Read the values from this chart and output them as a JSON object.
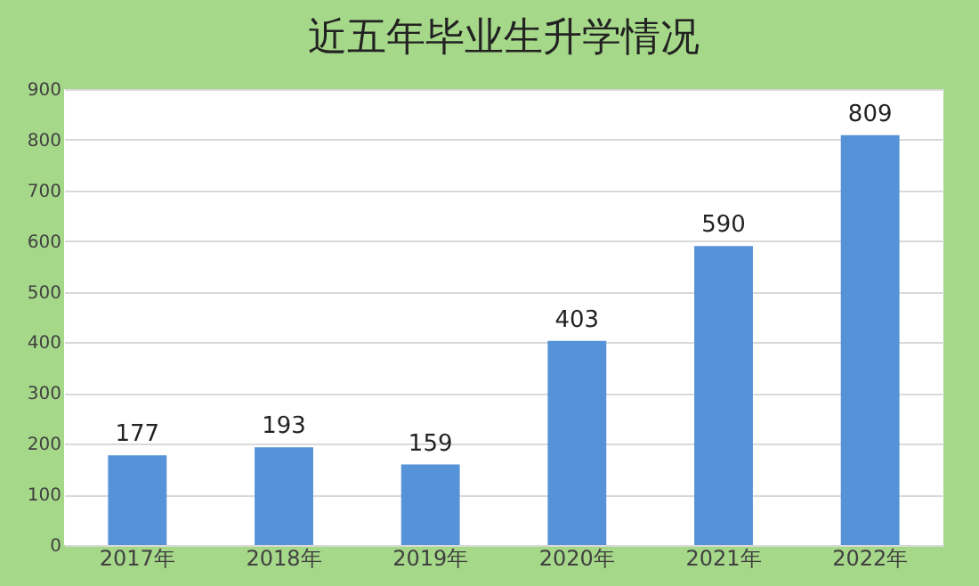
{
  "chart_data": {
    "type": "bar",
    "title": "近五年毕业生升学情况",
    "categories": [
      "2017年",
      "2018年",
      "2019年",
      "2020年",
      "2021年",
      "2022年"
    ],
    "values": [
      177,
      193,
      159,
      403,
      590,
      809
    ],
    "color": "#5592d8",
    "ylim": [
      0,
      900
    ],
    "yticks": [
      0,
      100,
      200,
      300,
      400,
      500,
      600,
      700,
      800,
      900
    ],
    "grid": "y",
    "data_labels": true
  }
}
